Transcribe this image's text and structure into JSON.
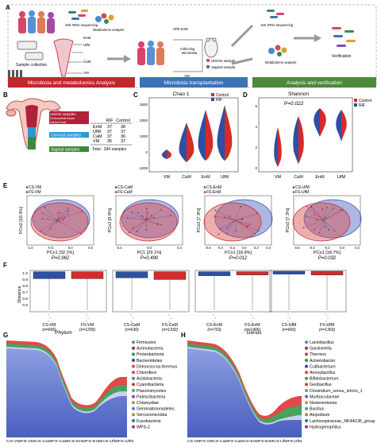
{
  "colors": {
    "control": "#2f4fa3",
    "rif": "#d42b2b",
    "banner_red": "#c0282d",
    "banner_blue": "#3b73b9",
    "banner_green": "#4c8a3c",
    "uterine": "#b2203a",
    "cervical": "#2a9ad6",
    "vaginal": "#3e8a3a"
  },
  "panel_a": {
    "letter": "A",
    "labels": {
      "sequencing_left": "16S rRNA sequencing",
      "metabolome_left": "Metabolome analysis",
      "sample_collection": "Sample collection",
      "ufm": "UfM",
      "enm": "EnM",
      "cam": "CaM",
      "vm": "VM",
      "ufm_enm_top": "UfM EnM",
      "collecting": "Collecting\nMicrobiota",
      "vm_mid": "VM",
      "uterine_sample": "Uterine sample",
      "vaginal_sample": "Vaginal sample",
      "sequencing_right": "16S rRNA sequencing",
      "metabolome_right": "Metabolome analysis",
      "verification": "Verification"
    },
    "banners": [
      "Microbiota and metabolomics Analysis",
      "Microbiota transplantation",
      "Analysis and verification"
    ]
  },
  "panel_b": {
    "letter": "B",
    "site_labels": [
      "Uterine samples",
      "Endometrial tissue",
      "Uterine fluid",
      "Cervical samples",
      "Vaginal samples"
    ],
    "table_headers": [
      "",
      "RIF",
      "Control"
    ],
    "table_rows": [
      [
        "EnM",
        "37",
        "38"
      ],
      [
        "UfM",
        "37",
        "37"
      ],
      [
        "CaM",
        "37",
        "36"
      ],
      [
        "VM",
        "35",
        "37"
      ]
    ],
    "total": "Total : 294 samples"
  },
  "panel_c": {
    "letter": "C",
    "title": "Chao 1",
    "legend": [
      "Control",
      "RIF"
    ],
    "categories": [
      "VM",
      "CaM",
      "EnM",
      "UfM"
    ],
    "yticks": [
      "-1000",
      "0",
      "1000",
      "2000",
      "3000"
    ]
  },
  "panel_d": {
    "letter": "D",
    "title": "Shannon",
    "pvalue": "P=0.022",
    "legend": [
      "Control",
      "RIF"
    ],
    "categories": [
      "VM",
      "CaM",
      "EnM",
      "UfM"
    ],
    "yticks": [
      "0",
      "2",
      "4",
      "6"
    ]
  },
  "panel_e": {
    "letter": "E",
    "plots": [
      {
        "legend": [
          "CS-VM",
          "FS-VM"
        ],
        "xlabel": "PCo1 [32.1%]",
        "ylabel": "PCo2 [10.3%]",
        "pvalue": "P=0.962",
        "xticks": [
          "-1.0",
          "-0.5",
          "0.0",
          "0.5"
        ]
      },
      {
        "legend": [
          "CS-CaM",
          "FS-CaM"
        ],
        "xlabel": "PC1 [29.1%]",
        "ylabel": "PCo2 [9.9%]",
        "pvalue": "P=0.490",
        "xticks": [
          "-0.4",
          "0.0",
          "0.4"
        ]
      },
      {
        "legend": [
          "CS-EnM",
          "FS-EnM"
        ],
        "xlabel": "PCo1 [18.9%]",
        "ylabel": "PCo2 [7.3%]",
        "pvalue": "P=0.012",
        "xticks": [
          "-0.6",
          "-0.4",
          "-0.2",
          "0.0",
          "0.2",
          "0.4"
        ]
      },
      {
        "legend": [
          "CS-UfM",
          "FS-UfM"
        ],
        "xlabel": "PCo1 [18.7%]",
        "ylabel": "PCo2 [7.3%]",
        "pvalue": "P=0.032",
        "xticks": [
          "-0.6",
          "-0.4",
          "-0.2",
          "0.0",
          "0.2"
        ]
      }
    ]
  },
  "panel_f": {
    "letter": "F",
    "ylabel": "Distance",
    "yticks": [
      "1.0",
      "0.9",
      "0.8",
      "0.7",
      "0.6",
      "0.5"
    ],
    "groups": [
      {
        "cs_label": "CS-VM",
        "cs_n": "(n=666)",
        "fs_label": "FS-VM",
        "fs_n": "(n=1295)"
      },
      {
        "cs_label": "CS-CaM",
        "cs_n": "(n=630)",
        "fs_label": "FS-CaM",
        "fs_n": "(n=1332)"
      },
      {
        "cs_label": "CS-EnM",
        "cs_n": "(n=703)",
        "fs_label": "FS-EnM",
        "fs_n": "(n=1406)"
      },
      {
        "cs_label": "CS-UfM",
        "cs_n": "(n=666)",
        "fs_label": "FS-UfM",
        "fs_n": "(n=1369)"
      }
    ]
  },
  "panel_g": {
    "letter": "G",
    "title": "Phylum",
    "xticks": "CS-VMFS-VMCS-CaMFS-CaMCS-EnMFS-EnMCS-UfMFS-UfM",
    "legend": [
      "Firmicutes",
      "Actinobacteria",
      "Proteobacteria",
      "Bacteroidetes",
      "Deinococcus-thermus",
      "Chloroflexi",
      "Acidobacteria",
      "Cyanobacteria",
      "Planctomycetes",
      "Patescibacteria",
      "Chlamydiae",
      "Gemmatimonadetes",
      "Verrucomicrobia",
      "Fusobacteria",
      "WPS-2"
    ],
    "legend_colors": [
      "#6d7fd0",
      "#9a3a3a",
      "#3a8a52",
      "#3d3fae",
      "#d64c4c",
      "#d2417a",
      "#4c9c44",
      "#c8412c",
      "#4ba3a0",
      "#7d4fb0",
      "#a8a040",
      "#4a8ad0",
      "#cc7a30",
      "#2f6fb0",
      "#b0306a"
    ]
  },
  "panel_h": {
    "letter": "H",
    "title": "Genus",
    "xticks": "CS-VMFS-VMCS-CaMFS-CaMCS-EnMFS-EnMCS-UfMFS-UfM",
    "legend": [
      "Lactobacillus",
      "Gardnerella",
      "Thermus",
      "Acinetobacter",
      "Cutibacterium",
      "Anoxybacillus",
      "Bifidobacterium",
      "Geobacillus",
      "Clostridium_sensu_stricto_1",
      "Muribaculaceae",
      "Nesterenkonia",
      "Bacillus",
      "Atopobium",
      "Lachnospiraceae_NK4A136_group",
      "Hydrogenophilus"
    ],
    "legend_colors": [
      "#6d7fd0",
      "#9a3a3a",
      "#c83a5a",
      "#3a8a52",
      "#3d3fae",
      "#d64c4c",
      "#4c9c44",
      "#c8412c",
      "#4ba3a0",
      "#7d4fb0",
      "#a8a040",
      "#4a8ad0",
      "#cc7a30",
      "#2f6fb0",
      "#b0306a"
    ]
  }
}
